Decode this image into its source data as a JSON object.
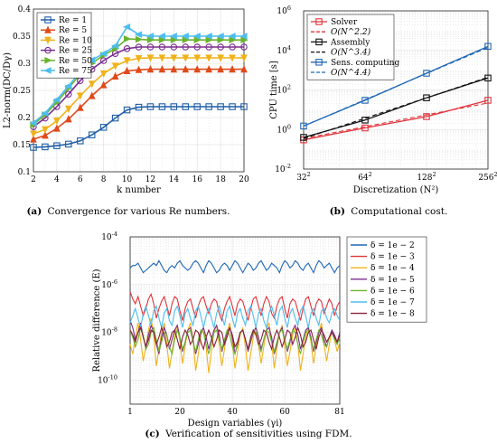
{
  "chart_data": [
    {
      "type": "line",
      "panel": "a",
      "caption_label": "(a)",
      "caption_text": "Convergence for various Re numbers.",
      "xlabel": "k number",
      "ylabel": "L2-norm(DC/Dγ)",
      "xlim": [
        2,
        20
      ],
      "ylim": [
        0.1,
        0.4
      ],
      "xticks": [
        2,
        4,
        6,
        8,
        10,
        12,
        14,
        16,
        18,
        20
      ],
      "yticks": [
        0.1,
        0.15,
        0.2,
        0.25,
        0.3,
        0.35,
        0.4
      ],
      "ytick_labels": [
        "0.1",
        "0.15",
        "0.2",
        "0.25",
        "0.3",
        "0.35",
        "0.4"
      ],
      "grid": true,
      "legend_position": "top-left",
      "x": [
        2,
        3,
        4,
        5,
        6,
        7,
        8,
        9,
        10,
        11,
        12,
        13,
        14,
        15,
        16,
        17,
        18,
        19,
        20
      ],
      "series": [
        {
          "name": "Re = 1",
          "color": "#1f5fa8",
          "marker": "square",
          "values": [
            0.145,
            0.146,
            0.148,
            0.151,
            0.157,
            0.168,
            0.182,
            0.199,
            0.214,
            0.219,
            0.22,
            0.22,
            0.22,
            0.22,
            0.22,
            0.22,
            0.22,
            0.22,
            0.22
          ]
        },
        {
          "name": "Re = 5",
          "color": "#e04a1b",
          "marker": "triangle-up",
          "values": [
            0.16,
            0.167,
            0.18,
            0.197,
            0.218,
            0.24,
            0.26,
            0.276,
            0.286,
            0.288,
            0.289,
            0.289,
            0.289,
            0.289,
            0.289,
            0.289,
            0.289,
            0.289,
            0.289
          ]
        },
        {
          "name": "Re = 10",
          "color": "#f0b21a",
          "marker": "triangle-down",
          "values": [
            0.17,
            0.178,
            0.194,
            0.216,
            0.24,
            0.262,
            0.281,
            0.295,
            0.305,
            0.309,
            0.31,
            0.31,
            0.31,
            0.31,
            0.31,
            0.31,
            0.31,
            0.31,
            0.31
          ]
        },
        {
          "name": "Re = 25",
          "color": "#7b2d8e",
          "marker": "circle",
          "values": [
            0.183,
            0.199,
            0.22,
            0.243,
            0.268,
            0.289,
            0.305,
            0.318,
            0.327,
            0.33,
            0.33,
            0.33,
            0.33,
            0.33,
            0.33,
            0.33,
            0.33,
            0.33,
            0.33
          ]
        },
        {
          "name": "Re = 50",
          "color": "#6ab42d",
          "marker": "triangle-right",
          "values": [
            0.187,
            0.205,
            0.228,
            0.254,
            0.28,
            0.3,
            0.315,
            0.327,
            0.345,
            0.344,
            0.343,
            0.343,
            0.343,
            0.343,
            0.343,
            0.343,
            0.343,
            0.343,
            0.343
          ]
        },
        {
          "name": "Re = 75",
          "color": "#4dbeee",
          "marker": "triangle-left",
          "values": [
            0.19,
            0.208,
            0.233,
            0.258,
            0.285,
            0.306,
            0.318,
            0.332,
            0.367,
            0.353,
            0.35,
            0.35,
            0.35,
            0.35,
            0.35,
            0.35,
            0.35,
            0.35,
            0.35
          ]
        }
      ]
    },
    {
      "type": "line",
      "panel": "b",
      "caption_label": "(b)",
      "caption_text": "Computational cost.",
      "xlabel": "Discretization (N²)",
      "ylabel": "CPU time [s]",
      "x_scale": "log2",
      "y_scale": "log10",
      "x_ticks": [
        32,
        64,
        128,
        256
      ],
      "y_ticks": [
        0.01,
        1,
        100,
        10000,
        1000000
      ],
      "x": [
        32,
        64,
        128,
        256
      ],
      "grid": true,
      "legend_position": "top-left",
      "series": [
        {
          "name": "Solver",
          "color": "#e0333a",
          "style": "solid",
          "marker": "square",
          "values": [
            0.3,
            1.2,
            4.5,
            30
          ]
        },
        {
          "name": "O(N^2.2)",
          "color": "#e0333a",
          "style": "dashed",
          "values": [
            0.35,
            1.4,
            5.5,
            22
          ]
        },
        {
          "name": "Assembly",
          "color": "#111111",
          "style": "solid",
          "marker": "square",
          "values": [
            0.4,
            3,
            40,
            400
          ]
        },
        {
          "name": "O(N^3.4)",
          "color": "#111111",
          "style": "dashed",
          "values": [
            0.35,
            3.7,
            40,
            440
          ]
        },
        {
          "name": "Sens. computing",
          "color": "#1f67b5",
          "style": "solid",
          "marker": "square",
          "values": [
            1.5,
            30,
            700,
            16000
          ]
        },
        {
          "name": "O(N^4.4)",
          "color": "#1f67b5",
          "style": "dashed",
          "values": [
            1.5,
            32,
            680,
            14000
          ]
        }
      ]
    },
    {
      "type": "line",
      "panel": "c",
      "caption_label": "(c)",
      "caption_text": "Verification of sensitivities using FDM.",
      "xlabel": "Design variables (γi)",
      "ylabel": "Relative difference (E)",
      "y_scale": "log10",
      "xlim": [
        1,
        81
      ],
      "x_ticks": [
        1,
        20,
        40,
        60,
        81
      ],
      "y_ticks": [
        1e-10,
        1e-08,
        1e-06,
        0.0001
      ],
      "grid": true,
      "legend_position": "outside-right",
      "series": [
        {
          "name": "δ = 1e − 2",
          "color": "#1f67b5",
          "exponents": [
            -5.3,
            -5.2,
            -5.2,
            -5.1,
            -5.3,
            -5.5,
            -5.4,
            -5.3,
            -5.2,
            -5.1,
            -5.2,
            -5.0,
            -5.2,
            -5.4,
            -5.5,
            -5.3,
            -5.2,
            -5.3,
            -5.1,
            -5.0,
            -5.2,
            -5.3,
            -5.4,
            -5.3,
            -5.1,
            -5.0,
            -5.1,
            -5.3,
            -5.5,
            -5.2,
            -5.0,
            -5.1,
            -5.3,
            -5.5,
            -5.4,
            -5.2,
            -5.1,
            -5.2,
            -5.4,
            -5.2,
            -5.0,
            -5.1,
            -5.3,
            -5.5,
            -5.3,
            -5.1,
            -5.2,
            -5.4,
            -5.3,
            -5.1,
            -5.0,
            -5.2,
            -5.4,
            -5.3,
            -5.1,
            -5.2,
            -5.3,
            -5.5,
            -5.2,
            -5.0,
            -5.1,
            -5.3,
            -5.2,
            -5.0,
            -5.1,
            -5.3,
            -5.4,
            -5.2,
            -5.1,
            -5.3,
            -5.5,
            -5.2,
            -5.0,
            -5.1,
            -5.3,
            -5.2,
            -5.1,
            -5.3,
            -5.5,
            -5.3,
            -5.2
          ]
        },
        {
          "name": "δ = 1e − 3",
          "color": "#e0333a",
          "exponents": [
            -6.3,
            -6.6,
            -6.8,
            -6.5,
            -6.9,
            -7.3,
            -7.0,
            -6.6,
            -6.4,
            -6.8,
            -7.4,
            -7.0,
            -6.7,
            -6.5,
            -6.9,
            -7.3,
            -6.8,
            -6.5,
            -6.6,
            -7.1,
            -7.5,
            -7.0,
            -6.7,
            -6.6,
            -7.0,
            -7.4,
            -6.9,
            -6.6,
            -6.5,
            -6.9,
            -7.2,
            -6.8,
            -6.6,
            -6.7,
            -7.2,
            -7.5,
            -7.0,
            -6.7,
            -6.5,
            -6.9,
            -7.3,
            -6.8,
            -6.6,
            -6.7,
            -7.1,
            -7.5,
            -7.0,
            -6.6,
            -6.5,
            -6.9,
            -7.3,
            -6.8,
            -6.5,
            -6.7,
            -7.2,
            -7.4,
            -6.9,
            -6.6,
            -6.5,
            -7.0,
            -7.4,
            -6.8,
            -6.6,
            -6.7,
            -7.1,
            -7.5,
            -7.0,
            -6.6,
            -6.5,
            -6.9,
            -7.3,
            -6.8,
            -6.6,
            -6.7,
            -7.2,
            -6.9,
            -6.6,
            -6.8,
            -7.3,
            -6.9,
            -6.7
          ]
        },
        {
          "name": "δ = 1e − 4",
          "color": "#f0b21a",
          "exponents": [
            -8.5,
            -8.9,
            -8.2,
            -7.6,
            -8.3,
            -9.2,
            -8.6,
            -7.9,
            -7.4,
            -8.1,
            -9.4,
            -8.7,
            -8.0,
            -7.6,
            -8.5,
            -9.5,
            -8.8,
            -8.1,
            -7.7,
            -8.4,
            -9.3,
            -8.6,
            -7.9,
            -7.6,
            -8.3,
            -9.6,
            -8.9,
            -8.1,
            -7.8,
            -8.6,
            -9.7,
            -8.8,
            -8.0,
            -7.7,
            -8.5,
            -9.4,
            -8.7,
            -8.0,
            -7.6,
            -8.4,
            -9.5,
            -8.8,
            -8.1,
            -7.8,
            -8.6,
            -9.6,
            -8.9,
            -8.2,
            -7.7,
            -8.5,
            -9.3,
            -8.6,
            -7.9,
            -7.6,
            -8.4,
            -9.5,
            -8.7,
            -8.0,
            -7.7,
            -8.6,
            -9.4,
            -8.8,
            -8.1,
            -7.8,
            -8.5,
            -9.6,
            -8.9,
            -8.2,
            -7.7,
            -8.4,
            -9.3,
            -8.6,
            -8.0,
            -7.6,
            -8.5,
            -9.2,
            -8.5,
            -7.9,
            -8.3,
            -8.8,
            -8.4
          ]
        },
        {
          "name": "δ = 1e − 5",
          "color": "#7b2d8e",
          "exponents": [
            -7.5,
            -7.8,
            -8.3,
            -8.0,
            -7.6,
            -8.2,
            -8.6,
            -8.1,
            -7.7,
            -8.0,
            -8.5,
            -8.9,
            -8.2,
            -7.8,
            -8.1,
            -8.7,
            -8.3,
            -7.9,
            -7.7,
            -8.2,
            -8.8,
            -8.4,
            -7.9,
            -7.8,
            -8.3,
            -8.9,
            -8.5,
            -8.0,
            -7.8,
            -8.2,
            -8.7,
            -8.3,
            -7.9,
            -7.7,
            -8.1,
            -8.8,
            -8.4,
            -8.0,
            -7.8,
            -8.2,
            -8.9,
            -8.5,
            -8.0,
            -7.9,
            -8.3,
            -8.8,
            -8.4,
            -8.0,
            -7.8,
            -8.2,
            -8.7,
            -8.3,
            -7.9,
            -7.8,
            -8.2,
            -8.9,
            -8.5,
            -8.0,
            -7.8,
            -8.3,
            -8.8,
            -8.4,
            -7.9,
            -7.7,
            -8.1,
            -8.7,
            -8.3,
            -7.9,
            -7.8,
            -8.2,
            -8.8,
            -8.4,
            -8.0,
            -7.8,
            -8.3,
            -8.6,
            -8.2,
            -7.9,
            -8.1,
            -8.4,
            -8.0
          ]
        },
        {
          "name": "δ = 1e − 6",
          "color": "#6ab42d",
          "exponents": [
            -7.9,
            -8.2,
            -8.6,
            -8.3,
            -7.8,
            -8.1,
            -8.7,
            -8.5,
            -8.0,
            -7.8,
            -8.3,
            -8.8,
            -8.4,
            -8.0,
            -8.1,
            -8.6,
            -8.9,
            -8.3,
            -7.9,
            -8.2,
            -8.7,
            -8.4,
            -8.0,
            -7.9,
            -8.4,
            -8.8,
            -8.3,
            -7.9,
            -8.0,
            -8.5,
            -8.9,
            -8.4,
            -8.0,
            -7.9,
            -8.3,
            -8.7,
            -8.3,
            -7.9,
            -8.1,
            -8.6,
            -8.9,
            -8.4,
            -8.0,
            -7.9,
            -8.3,
            -8.7,
            -8.3,
            -7.9,
            -8.0,
            -8.5,
            -8.8,
            -8.3,
            -7.9,
            -8.0,
            -8.4,
            -8.8,
            -8.4,
            -8.0,
            -7.9,
            -8.3,
            -8.7,
            -8.3,
            -7.9,
            -8.0,
            -8.5,
            -8.9,
            -8.4,
            -8.0,
            -7.9,
            -8.3,
            -8.7,
            -8.3,
            -7.9,
            -8.1,
            -8.5,
            -8.6,
            -8.2,
            -8.0,
            -8.3,
            -8.5,
            -8.2
          ]
        },
        {
          "name": "δ = 1e − 7",
          "color": "#4dbeee",
          "exponents": [
            -7.6,
            -7.3,
            -7.0,
            -7.4,
            -7.8,
            -7.2,
            -6.9,
            -7.3,
            -7.7,
            -7.1,
            -6.9,
            -7.4,
            -7.8,
            -7.2,
            -7.0,
            -7.5,
            -7.7,
            -7.1,
            -6.9,
            -7.3,
            -7.8,
            -7.2,
            -7.0,
            -7.4,
            -7.7,
            -7.1,
            -6.9,
            -7.3,
            -7.8,
            -7.3,
            -7.0,
            -7.4,
            -7.8,
            -7.2,
            -6.9,
            -7.3,
            -7.7,
            -7.1,
            -6.9,
            -7.4,
            -7.8,
            -7.2,
            -7.0,
            -7.4,
            -7.7,
            -7.1,
            -6.9,
            -7.3,
            -7.8,
            -7.2,
            -7.0,
            -7.5,
            -7.8,
            -7.2,
            -6.9,
            -7.3,
            -7.7,
            -7.1,
            -6.9,
            -7.4,
            -7.8,
            -7.2,
            -7.0,
            -7.4,
            -7.7,
            -7.1,
            -6.9,
            -7.3,
            -7.8,
            -7.2,
            -7.0,
            -7.4,
            -7.7,
            -7.1,
            -7.0,
            -7.4,
            -7.6,
            -7.2,
            -7.0,
            -7.3,
            -7.5
          ]
        },
        {
          "name": "δ = 1e − 8",
          "color": "#8a1f3a",
          "exponents": [
            -7.9,
            -8.1,
            -8.4,
            -8.0,
            -7.8,
            -8.2,
            -8.6,
            -8.3,
            -7.9,
            -8.0,
            -8.5,
            -8.2,
            -7.8,
            -8.1,
            -8.6,
            -8.4,
            -8.0,
            -7.9,
            -8.3,
            -8.7,
            -8.2,
            -7.9,
            -8.1,
            -8.5,
            -8.3,
            -7.9,
            -8.0,
            -8.4,
            -8.7,
            -8.2,
            -7.9,
            -8.2,
            -8.6,
            -8.3,
            -7.9,
            -8.0,
            -8.5,
            -8.2,
            -7.8,
            -8.1,
            -8.6,
            -8.4,
            -8.0,
            -7.9,
            -8.3,
            -8.7,
            -8.2,
            -7.9,
            -8.1,
            -8.5,
            -8.3,
            -7.9,
            -8.0,
            -8.4,
            -8.7,
            -8.2,
            -7.9,
            -8.2,
            -8.6,
            -8.3,
            -7.9,
            -8.0,
            -8.5,
            -8.2,
            -7.8,
            -8.1,
            -8.6,
            -8.4,
            -8.0,
            -7.9,
            -8.3,
            -8.7,
            -8.2,
            -7.9,
            -8.1,
            -8.4,
            -8.2,
            -8.0,
            -8.2,
            -8.4,
            -8.1
          ]
        }
      ]
    }
  ]
}
